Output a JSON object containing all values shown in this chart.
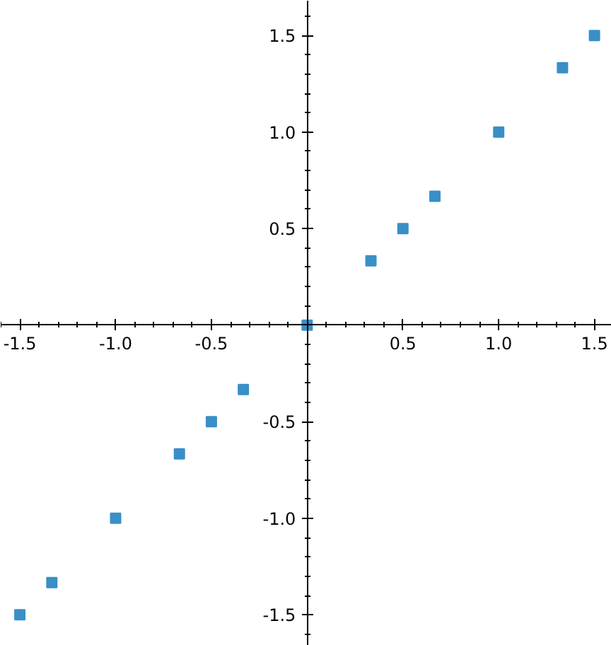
{
  "chart_data": {
    "type": "scatter",
    "marker": "square",
    "grid": false,
    "x": [
      -1.5,
      -1.333,
      -1.0,
      -0.667,
      -0.5,
      -0.333,
      0.0,
      0.333,
      0.5,
      0.667,
      1.0,
      1.333,
      1.5
    ],
    "series": [
      {
        "color": "#3a8fc7",
        "values": [
          -1.5,
          -1.333,
          -1.0,
          -0.667,
          -0.5,
          -0.333,
          0.0,
          0.333,
          0.5,
          0.667,
          1.0,
          1.333,
          1.5
        ]
      }
    ],
    "xlim": [
      -1.6,
      1.59
    ],
    "ylim": [
      -1.66,
      1.68
    ],
    "xticks": [
      {
        "value": -1.5,
        "label": "-1.5"
      },
      {
        "value": -1.0,
        "label": "-1.0"
      },
      {
        "value": -0.5,
        "label": "-0.5"
      },
      {
        "value": 0.5,
        "label": "0.5"
      },
      {
        "value": 1.0,
        "label": "1.0"
      },
      {
        "value": 1.5,
        "label": "1.5"
      }
    ],
    "yticks": [
      {
        "value": -1.5,
        "label": "-1.5"
      },
      {
        "value": -1.0,
        "label": "-1.0"
      },
      {
        "value": -0.5,
        "label": "-0.5"
      },
      {
        "value": 0.5,
        "label": "0.5"
      },
      {
        "value": 1.0,
        "label": "1.0"
      },
      {
        "value": 1.5,
        "label": "1.5"
      }
    ]
  }
}
